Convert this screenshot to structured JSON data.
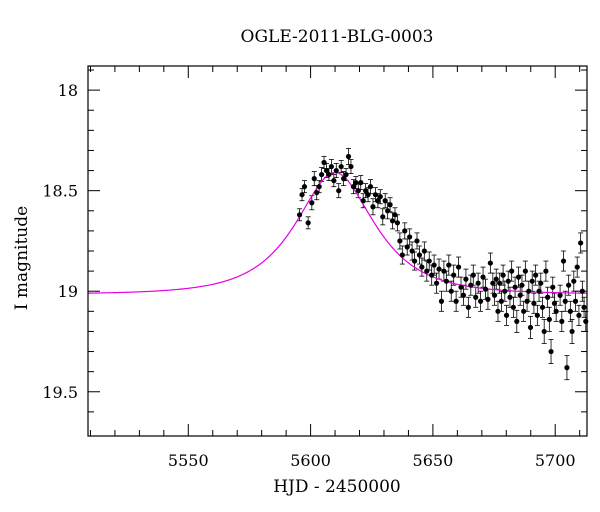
{
  "chart_data": {
    "type": "scatter",
    "title": "OGLE-2011-BLG-0003",
    "xlabel": "HJD - 2450000",
    "ylabel": "I magnitude",
    "xlim": [
      5509,
      5713
    ],
    "ylim": [
      19.72,
      17.88
    ],
    "y_inverted": true,
    "x_ticks": [
      5550,
      5600,
      5650,
      5700
    ],
    "x_tick_labels": [
      "5550",
      "5600",
      "5650",
      "5700"
    ],
    "y_ticks": [
      18.0,
      18.5,
      19.0,
      19.5
    ],
    "y_tick_labels": [
      "18",
      "18.5",
      "19",
      "19.5"
    ],
    "grid": false,
    "colors": {
      "points": "#000000",
      "model": "#e600e6"
    },
    "model": {
      "style": "line",
      "baseline": 19.015,
      "peak_x": 5610,
      "peak_mag": 18.41,
      "tE": 24
    },
    "series": [
      {
        "style": "points-with-errorbars",
        "points": [
          [
            5595.5,
            18.62,
            0.03
          ],
          [
            5596.5,
            18.52,
            0.03
          ],
          [
            5597.5,
            18.48,
            0.03
          ],
          [
            5599.0,
            18.66,
            0.03
          ],
          [
            5600.5,
            18.56,
            0.035
          ],
          [
            5601.5,
            18.44,
            0.035
          ],
          [
            5602.5,
            18.51,
            0.035
          ],
          [
            5603.5,
            18.48,
            0.03
          ],
          [
            5604.5,
            18.42,
            0.035
          ],
          [
            5605.5,
            18.36,
            0.03
          ],
          [
            5606.5,
            18.4,
            0.035
          ],
          [
            5607.5,
            18.42,
            0.03
          ],
          [
            5608.5,
            18.38,
            0.035
          ],
          [
            5609.5,
            18.45,
            0.03
          ],
          [
            5610.5,
            18.4,
            0.035
          ],
          [
            5611.5,
            18.5,
            0.035
          ],
          [
            5612.5,
            18.38,
            0.03
          ],
          [
            5613.5,
            18.44,
            0.035
          ],
          [
            5614.5,
            18.42,
            0.03
          ],
          [
            5615.5,
            18.33,
            0.04
          ],
          [
            5616.5,
            18.38,
            0.035
          ],
          [
            5617.5,
            18.48,
            0.035
          ],
          [
            5618.5,
            18.46,
            0.03
          ],
          [
            5619.5,
            18.5,
            0.035
          ],
          [
            5620.5,
            18.46,
            0.035
          ],
          [
            5621.5,
            18.55,
            0.035
          ],
          [
            5622.5,
            18.5,
            0.035
          ],
          [
            5623.5,
            18.52,
            0.035
          ],
          [
            5624.5,
            18.48,
            0.035
          ],
          [
            5625.5,
            18.58,
            0.04
          ],
          [
            5626.5,
            18.52,
            0.035
          ],
          [
            5627.5,
            18.55,
            0.035
          ],
          [
            5628.5,
            18.53,
            0.035
          ],
          [
            5629.5,
            18.63,
            0.04
          ],
          [
            5630.5,
            18.55,
            0.035
          ],
          [
            5631.5,
            18.6,
            0.04
          ],
          [
            5632.5,
            18.57,
            0.035
          ],
          [
            5633.5,
            18.65,
            0.04
          ],
          [
            5634.5,
            18.62,
            0.035
          ],
          [
            5635.5,
            18.66,
            0.04
          ],
          [
            5636.5,
            18.75,
            0.04
          ],
          [
            5637.5,
            18.82,
            0.045
          ],
          [
            5638.5,
            18.7,
            0.04
          ],
          [
            5639.5,
            18.78,
            0.04
          ],
          [
            5640.5,
            18.73,
            0.04
          ],
          [
            5641.5,
            18.8,
            0.045
          ],
          [
            5642.5,
            18.85,
            0.045
          ],
          [
            5643.5,
            18.75,
            0.04
          ],
          [
            5644.5,
            18.82,
            0.045
          ],
          [
            5645.5,
            18.88,
            0.045
          ],
          [
            5646.5,
            18.8,
            0.045
          ],
          [
            5647.5,
            18.9,
            0.05
          ],
          [
            5648.5,
            18.85,
            0.045
          ],
          [
            5649.5,
            18.92,
            0.05
          ],
          [
            5650.5,
            18.87,
            0.05
          ],
          [
            5651.5,
            18.96,
            0.05
          ],
          [
            5652.5,
            18.89,
            0.05
          ],
          [
            5653.5,
            19.05,
            0.05
          ],
          [
            5654.5,
            18.9,
            0.05
          ],
          [
            5655.5,
            18.95,
            0.05
          ],
          [
            5656.5,
            18.87,
            0.05
          ],
          [
            5657.5,
            19.0,
            0.05
          ],
          [
            5658.5,
            18.92,
            0.05
          ],
          [
            5659.5,
            19.05,
            0.05
          ],
          [
            5660.5,
            18.88,
            0.05
          ],
          [
            5661.5,
            18.98,
            0.05
          ],
          [
            5662.5,
            19.02,
            0.05
          ],
          [
            5663.5,
            18.94,
            0.05
          ],
          [
            5664.5,
            19.08,
            0.05
          ],
          [
            5665.5,
            18.97,
            0.05
          ],
          [
            5666.5,
            18.92,
            0.05
          ],
          [
            5667.5,
            19.03,
            0.05
          ],
          [
            5668.5,
            18.96,
            0.05
          ],
          [
            5669.5,
            19.05,
            0.05
          ],
          [
            5670.5,
            18.93,
            0.05
          ],
          [
            5671.5,
            18.99,
            0.05
          ],
          [
            5672.5,
            19.04,
            0.05
          ],
          [
            5673.5,
            18.86,
            0.05
          ],
          [
            5674.5,
            18.96,
            0.05
          ],
          [
            5675.2,
            19.02,
            0.05
          ],
          [
            5675.9,
            18.94,
            0.05
          ],
          [
            5676.6,
            19.1,
            0.05
          ],
          [
            5677.3,
            18.96,
            0.05
          ],
          [
            5678.0,
            19.05,
            0.05
          ],
          [
            5678.7,
            18.92,
            0.05
          ],
          [
            5679.4,
            19.0,
            0.05
          ],
          [
            5680.1,
            19.12,
            0.05
          ],
          [
            5680.8,
            18.95,
            0.05
          ],
          [
            5681.5,
            19.03,
            0.05
          ],
          [
            5682.2,
            18.9,
            0.05
          ],
          [
            5682.9,
            19.08,
            0.05
          ],
          [
            5683.6,
            18.98,
            0.05
          ],
          [
            5684.3,
            19.15,
            0.055
          ],
          [
            5685.0,
            18.93,
            0.05
          ],
          [
            5685.7,
            19.02,
            0.05
          ],
          [
            5686.4,
            18.97,
            0.05
          ],
          [
            5687.1,
            19.1,
            0.05
          ],
          [
            5687.8,
            18.9,
            0.05
          ],
          [
            5688.5,
            19.05,
            0.05
          ],
          [
            5689.2,
            19.0,
            0.05
          ],
          [
            5689.9,
            19.18,
            0.055
          ],
          [
            5690.6,
            18.95,
            0.05
          ],
          [
            5691.3,
            19.06,
            0.05
          ],
          [
            5692.0,
            18.92,
            0.05
          ],
          [
            5692.7,
            19.12,
            0.05
          ],
          [
            5693.4,
            19.0,
            0.05
          ],
          [
            5694.1,
            18.96,
            0.05
          ],
          [
            5694.8,
            19.08,
            0.05
          ],
          [
            5695.5,
            19.2,
            0.06
          ],
          [
            5696.2,
            18.9,
            0.05
          ],
          [
            5696.9,
            19.03,
            0.05
          ],
          [
            5697.6,
            19.14,
            0.06
          ],
          [
            5698.3,
            19.3,
            0.06
          ],
          [
            5699.0,
            18.98,
            0.05
          ],
          [
            5699.7,
            19.06,
            0.05
          ],
          [
            5700.4,
            19.1,
            0.05
          ],
          [
            5702.0,
            19.02,
            0.05
          ],
          [
            5702.7,
            19.15,
            0.05
          ],
          [
            5703.4,
            18.85,
            0.05
          ],
          [
            5704.1,
            19.05,
            0.05
          ],
          [
            5704.8,
            19.38,
            0.06
          ],
          [
            5705.5,
            18.97,
            0.05
          ],
          [
            5706.2,
            19.1,
            0.05
          ],
          [
            5706.9,
            19.2,
            0.06
          ],
          [
            5707.6,
            18.95,
            0.05
          ],
          [
            5708.3,
            19.05,
            0.05
          ],
          [
            5709.0,
            18.88,
            0.05
          ],
          [
            5709.7,
            19.12,
            0.05
          ],
          [
            5710.4,
            18.76,
            0.05
          ],
          [
            5711.1,
            19.0,
            0.05
          ],
          [
            5711.8,
            19.08,
            0.05
          ],
          [
            5712.5,
            19.15,
            0.05
          ]
        ]
      }
    ]
  }
}
